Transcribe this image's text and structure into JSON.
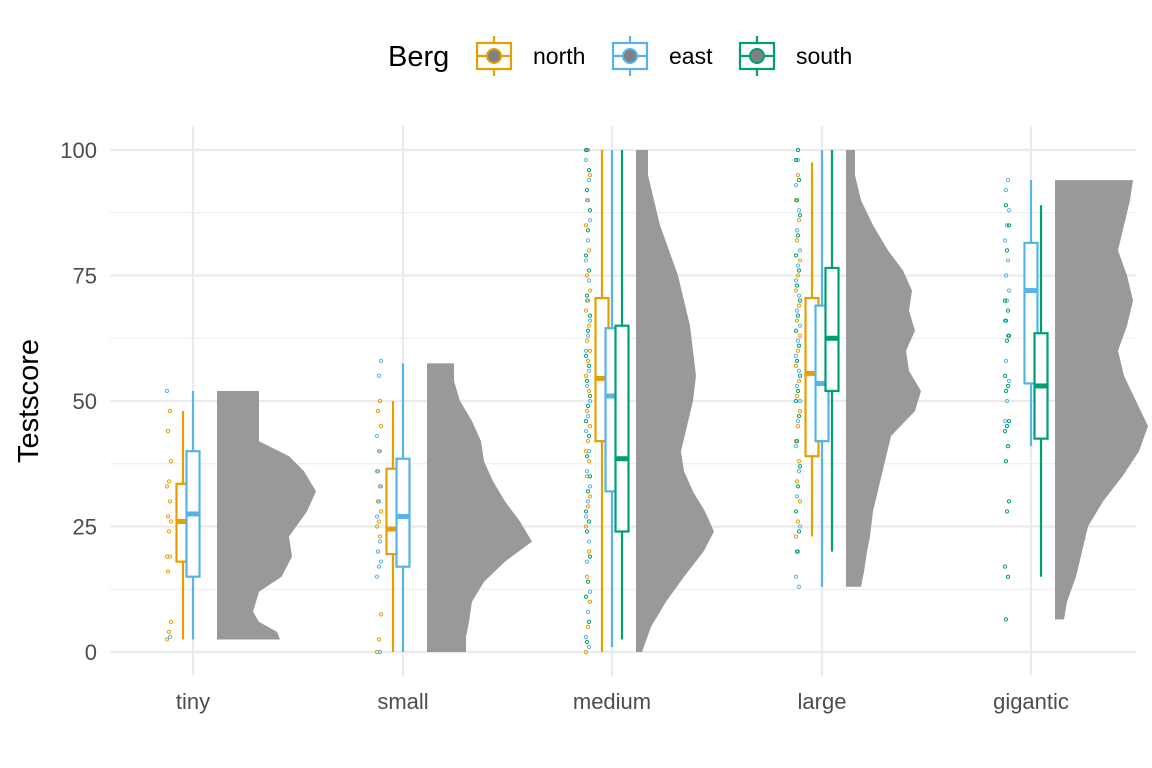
{
  "chart_data": {
    "type": "raincloud",
    "ylabel": "Testscore",
    "xlabel": "",
    "ylim": [
      0,
      100
    ],
    "y_ticks": [
      "0",
      "25",
      "50",
      "75",
      "100"
    ],
    "grid": true,
    "categories": [
      "tiny",
      "small",
      "medium",
      "large",
      "gigantic"
    ],
    "legend": {
      "title": "Berg",
      "position": "top",
      "items": [
        {
          "label": "north",
          "color": "#E69F00"
        },
        {
          "label": "east",
          "color": "#56B4E9"
        },
        {
          "label": "south",
          "color": "#009E73"
        }
      ]
    },
    "cloud_color": "#999999",
    "boxes": {
      "tiny": [
        {
          "group": "north",
          "min": 2.5,
          "q1": 18,
          "median": 26,
          "q3": 33.5,
          "max": 48
        },
        {
          "group": "east",
          "min": 2.5,
          "q1": 15,
          "median": 27.5,
          "q3": 40,
          "max": 52
        }
      ],
      "small": [
        {
          "group": "north",
          "min": 0,
          "q1": 19.5,
          "median": 24.5,
          "q3": 36.5,
          "max": 50
        },
        {
          "group": "east",
          "min": 0,
          "q1": 17,
          "median": 27,
          "q3": 38.5,
          "max": 57.5
        }
      ],
      "medium": [
        {
          "group": "north",
          "min": 0,
          "q1": 42,
          "median": 54.5,
          "q3": 70.5,
          "max": 100
        },
        {
          "group": "east",
          "min": 1,
          "q1": 32,
          "median": 51,
          "q3": 64.5,
          "max": 100
        },
        {
          "group": "south",
          "min": 2.5,
          "q1": 24,
          "median": 38.5,
          "q3": 65,
          "max": 100
        }
      ],
      "large": [
        {
          "group": "north",
          "min": 23,
          "q1": 39,
          "median": 55.5,
          "q3": 70.5,
          "max": 97.5
        },
        {
          "group": "east",
          "min": 13,
          "q1": 42,
          "median": 53.5,
          "q3": 69,
          "max": 100
        },
        {
          "group": "south",
          "min": 20,
          "q1": 52,
          "median": 62.5,
          "q3": 76.5,
          "max": 100
        }
      ],
      "gigantic": [
        {
          "group": "east",
          "min": 41,
          "q1": 53.5,
          "median": 72,
          "q3": 81.5,
          "max": 94
        },
        {
          "group": "south",
          "min": 15,
          "q1": 42.5,
          "median": 53,
          "q3": 63.5,
          "max": 89
        }
      ]
    },
    "rain": {
      "tiny": {
        "north": [
          2.5,
          4,
          6,
          16,
          19,
          19,
          24,
          26,
          27,
          30,
          33,
          34,
          38,
          44,
          48
        ],
        "east": [
          3,
          52
        ],
        "south": []
      },
      "small": {
        "north": [
          0,
          2.5,
          7.5,
          20,
          23,
          25,
          26,
          28,
          30,
          33,
          36,
          40,
          45,
          48,
          50
        ],
        "east": [
          0,
          15,
          17,
          18,
          20,
          22,
          27,
          30,
          33,
          36,
          40,
          43,
          55,
          58
        ],
        "south": []
      },
      "medium": {
        "north": [
          0,
          5,
          10,
          15,
          20,
          25,
          29,
          31,
          35,
          38,
          40,
          42,
          45,
          48,
          52,
          55,
          58,
          60,
          62,
          65,
          68,
          70,
          72,
          75,
          80,
          85,
          90,
          95,
          100
        ],
        "east": [
          1,
          3,
          8,
          12,
          18,
          22,
          27,
          30,
          33,
          36,
          40,
          44,
          47,
          50,
          53,
          56,
          60,
          63,
          66,
          70,
          74,
          78,
          82,
          86,
          90,
          94,
          98,
          100
        ],
        "south": [
          2,
          6,
          11,
          14,
          19,
          24,
          26,
          28,
          32,
          35,
          39,
          43,
          46,
          49,
          51,
          54,
          57,
          59,
          64,
          67,
          71,
          76,
          79,
          84,
          88,
          92,
          96,
          100
        ]
      },
      "large": {
        "north": [
          23,
          26,
          30,
          34,
          38,
          42,
          45,
          48,
          51,
          54,
          57,
          60,
          63,
          66,
          69,
          72,
          75,
          78,
          82,
          86,
          90,
          95
        ],
        "east": [
          13,
          15,
          20,
          25,
          31,
          36,
          41,
          46,
          50,
          53,
          56,
          59,
          62,
          65,
          68,
          71,
          74,
          77,
          80,
          84,
          88,
          93,
          98
        ],
        "south": [
          20,
          24,
          28,
          33,
          37,
          42,
          47,
          50,
          52,
          55,
          58,
          61,
          64,
          67,
          70,
          73,
          76,
          79,
          83,
          87,
          90,
          94,
          98,
          100
        ]
      },
      "gigantic": {
        "north": [],
        "east": [
          41,
          46,
          50,
          54,
          58,
          63,
          66,
          70,
          72,
          75,
          78,
          82,
          85,
          88,
          92,
          94
        ],
        "south": [
          6.5,
          15,
          17,
          28,
          30,
          38,
          41,
          44,
          45,
          46,
          52,
          53,
          55,
          62,
          63,
          66,
          68,
          70,
          80,
          85,
          89
        ]
      }
    },
    "clouds": {
      "tiny": {
        "lo": 2.5,
        "hi": 52,
        "y": [
          2.5,
          4,
          6,
          8,
          12,
          15,
          19,
          23,
          28,
          32,
          36,
          39,
          42,
          47,
          52
        ],
        "w": [
          0.42,
          0.4,
          0.28,
          0.24,
          0.28,
          0.43,
          0.5,
          0.48,
          0.6,
          0.66,
          0.58,
          0.48,
          0.28,
          0.28,
          0.28
        ]
      },
      "small": {
        "lo": 0,
        "hi": 57.5,
        "y": [
          0,
          3,
          6,
          10,
          14,
          18,
          22,
          26,
          30,
          34,
          38,
          42,
          46,
          50,
          54,
          57.5
        ],
        "w": [
          0.26,
          0.26,
          0.28,
          0.3,
          0.38,
          0.52,
          0.7,
          0.62,
          0.52,
          0.44,
          0.38,
          0.36,
          0.3,
          0.22,
          0.18,
          0.18
        ]
      },
      "medium": {
        "lo": 0,
        "hi": 100,
        "y": [
          0,
          5,
          10,
          15,
          20,
          24,
          28,
          32,
          36,
          40,
          45,
          50,
          55,
          60,
          65,
          70,
          75,
          80,
          85,
          90,
          95,
          100
        ],
        "w": [
          0.04,
          0.1,
          0.2,
          0.32,
          0.45,
          0.52,
          0.46,
          0.38,
          0.32,
          0.3,
          0.34,
          0.38,
          0.4,
          0.38,
          0.36,
          0.32,
          0.28,
          0.22,
          0.16,
          0.12,
          0.08,
          0.08
        ]
      },
      "large": {
        "lo": 13,
        "hi": 100,
        "y": [
          13,
          16,
          20,
          23,
          28,
          33,
          38,
          43,
          48,
          52,
          56,
          60,
          64,
          68,
          72,
          76,
          80,
          85,
          90,
          95,
          100
        ],
        "w": [
          0.1,
          0.12,
          0.14,
          0.16,
          0.18,
          0.22,
          0.26,
          0.3,
          0.46,
          0.5,
          0.42,
          0.4,
          0.46,
          0.42,
          0.44,
          0.38,
          0.28,
          0.18,
          0.1,
          0.06,
          0.06
        ]
      },
      "gigantic": {
        "lo": 6.5,
        "hi": 94,
        "y": [
          6.5,
          10,
          15,
          20,
          25,
          30,
          35,
          40,
          45,
          50,
          55,
          60,
          65,
          70,
          75,
          80,
          85,
          90,
          94
        ],
        "w": [
          0.06,
          0.08,
          0.14,
          0.18,
          0.22,
          0.32,
          0.45,
          0.56,
          0.62,
          0.54,
          0.46,
          0.42,
          0.48,
          0.52,
          0.48,
          0.42,
          0.46,
          0.5,
          0.52
        ]
      }
    }
  }
}
